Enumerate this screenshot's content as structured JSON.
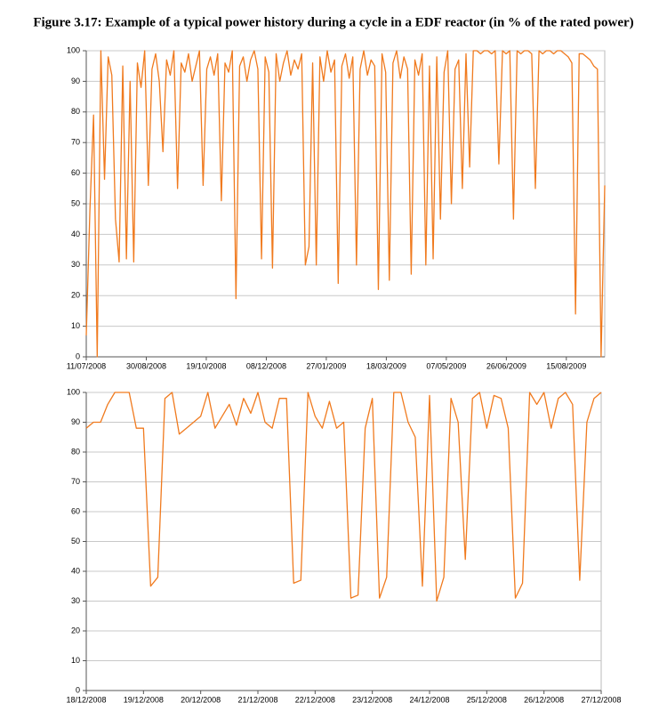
{
  "title": "Figure 3.17: Example of a typical power history during a cycle in a EDF reactor (in % of the rated power)",
  "chart_data": [
    {
      "type": "line",
      "color": "#f07a1e",
      "grid": true,
      "xlim": [
        "11/07/2008",
        "16/09/2009"
      ],
      "xticks": [
        "11/07/2008",
        "30/08/2008",
        "19/10/2008",
        "08/12/2008",
        "27/01/2009",
        "18/03/2009",
        "07/05/2009",
        "26/06/2009",
        "15/08/2009"
      ],
      "ylim": [
        0,
        100
      ],
      "yticks": [
        0,
        10,
        20,
        30,
        40,
        50,
        60,
        70,
        80,
        90,
        100
      ],
      "values": [
        7,
        48,
        79,
        0,
        100,
        58,
        98,
        92,
        45,
        31,
        95,
        32,
        90,
        31,
        96,
        88,
        100,
        56,
        94,
        99,
        90,
        67,
        97,
        92,
        100,
        55,
        96,
        93,
        99,
        90,
        95,
        100,
        56,
        94,
        98,
        92,
        99,
        51,
        96,
        93,
        100,
        19,
        95,
        98,
        90,
        97,
        100,
        94,
        32,
        98,
        93,
        29,
        99,
        90,
        96,
        100,
        92,
        97,
        94,
        99,
        30,
        36,
        96,
        30,
        98,
        90,
        100,
        93,
        97,
        24,
        95,
        99,
        91,
        98,
        30,
        94,
        100,
        92,
        97,
        95,
        22,
        99,
        93,
        25,
        96,
        100,
        91,
        98,
        94,
        27,
        97,
        92,
        99,
        30,
        95,
        32,
        98,
        45,
        93,
        100,
        50,
        94,
        97,
        55,
        99,
        62,
        100,
        100,
        99,
        100,
        100,
        99,
        100,
        63,
        100,
        99,
        100,
        45,
        100,
        99,
        100,
        100,
        99,
        55,
        100,
        99,
        100,
        100,
        99,
        100,
        100,
        99,
        98,
        96,
        14,
        99,
        99,
        98,
        97,
        95,
        94,
        0,
        56
      ]
    },
    {
      "type": "line",
      "color": "#f07a1e",
      "grid": true,
      "xlim": [
        "18/12/2008",
        "27/12/2008"
      ],
      "xticks": [
        "18/12/2008",
        "19/12/2008",
        "20/12/2008",
        "21/12/2008",
        "22/12/2008",
        "23/12/2008",
        "24/12/2008",
        "25/12/2008",
        "26/12/2008",
        "27/12/2008"
      ],
      "ylim": [
        0,
        100
      ],
      "yticks": [
        0,
        10,
        20,
        30,
        40,
        50,
        60,
        70,
        80,
        90,
        100
      ],
      "values": [
        88,
        90,
        90,
        96,
        100,
        100,
        100,
        88,
        88,
        35,
        38,
        98,
        100,
        86,
        88,
        90,
        92,
        100,
        88,
        92,
        96,
        89,
        98,
        93,
        100,
        90,
        88,
        98,
        98,
        36,
        37,
        100,
        92,
        88,
        97,
        88,
        90,
        31,
        32,
        88,
        98,
        31,
        38,
        100,
        100,
        90,
        85,
        35,
        99,
        30,
        38,
        98,
        90,
        44,
        98,
        100,
        88,
        99,
        98,
        88,
        31,
        36,
        100,
        96,
        100,
        88,
        98,
        100,
        96,
        37,
        90,
        98,
        100
      ]
    }
  ]
}
